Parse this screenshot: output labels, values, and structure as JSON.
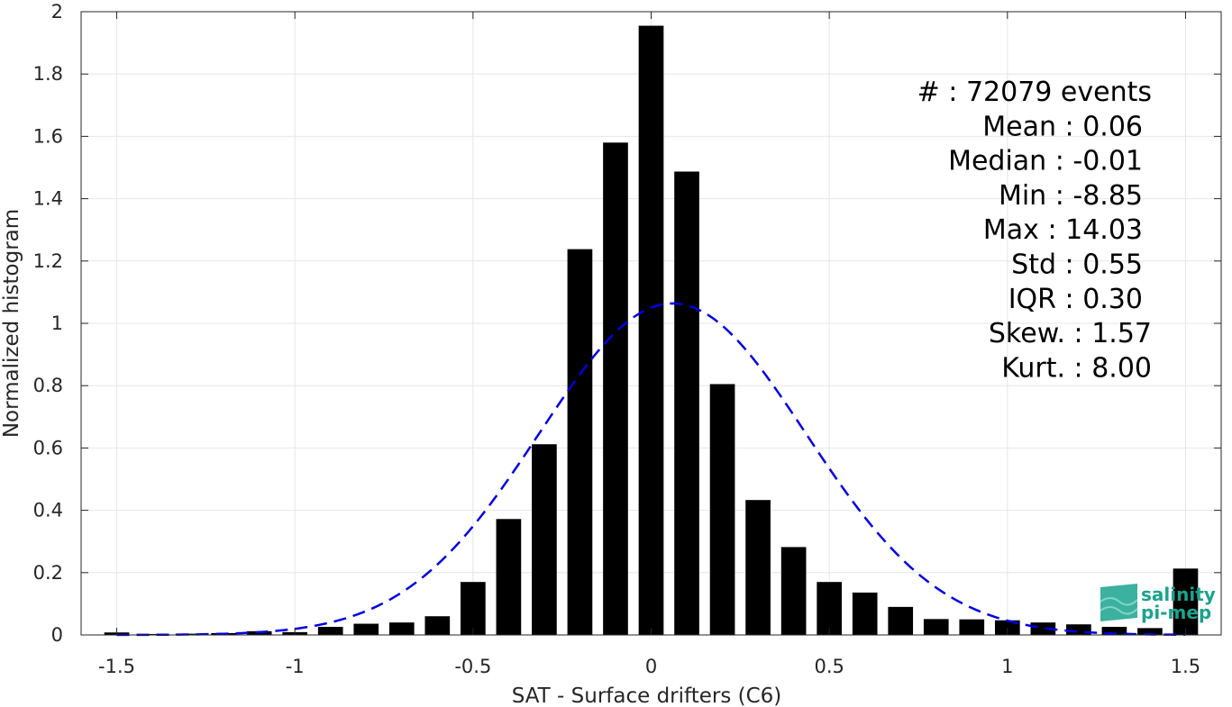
{
  "chart_data": {
    "type": "bar",
    "xlabel": "SAT - Surface drifters (C6)",
    "ylabel": "Normalized histogram",
    "xlim": [
      -1.6,
      1.6
    ],
    "ylim": [
      0,
      2
    ],
    "xticks": [
      "-1.5",
      "-1",
      "-0.5",
      "0",
      "0.5",
      "1",
      "1.5"
    ],
    "xtick_values": [
      -1.5,
      -1,
      -0.5,
      0,
      0.5,
      1,
      1.5
    ],
    "yticks": [
      "0",
      "0.2",
      "0.4",
      "0.6",
      "0.8",
      "1",
      "1.2",
      "1.4",
      "1.6",
      "1.8",
      "2"
    ],
    "ytick_values": [
      0,
      0.2,
      0.4,
      0.6,
      0.8,
      1,
      1.2,
      1.4,
      1.6,
      1.8,
      2
    ],
    "grid": true,
    "bar_color": "#000000",
    "bins": {
      "x": [
        -1.5,
        -1.4,
        -1.3,
        -1.2,
        -1.1,
        -1.0,
        -0.9,
        -0.8,
        -0.7,
        -0.6,
        -0.5,
        -0.4,
        -0.3,
        -0.2,
        -0.1,
        0.0,
        0.1,
        0.2,
        0.3,
        0.4,
        0.5,
        0.6,
        0.7,
        0.8,
        0.9,
        1.0,
        1.1,
        1.2,
        1.3,
        1.4,
        1.5
      ],
      "values": [
        0.008,
        0.003,
        0.004,
        0.006,
        0.012,
        0.009,
        0.026,
        0.036,
        0.04,
        0.06,
        0.17,
        0.372,
        0.612,
        1.238,
        1.58,
        1.955,
        1.487,
        0.805,
        0.433,
        0.282,
        0.17,
        0.136,
        0.09,
        0.051,
        0.05,
        0.047,
        0.04,
        0.034,
        0.026,
        0.022,
        0.213
      ]
    },
    "fit": {
      "name": "gaussian",
      "mean": 0.06,
      "std": 0.375,
      "color": "#0000e6",
      "style": "dashed"
    },
    "stats_text": [
      "#  : 72079 events",
      "Mean : 0.06",
      "Median : -0.01",
      "Min : -8.85",
      "Max : 14.03",
      "Std : 0.55",
      "IQR : 0.30",
      "Skew. : 1.57",
      "Kurt. : 8.00"
    ]
  },
  "logo": {
    "line1": "salinity",
    "line2": "pi-mep",
    "color": "#1aa38e"
  }
}
